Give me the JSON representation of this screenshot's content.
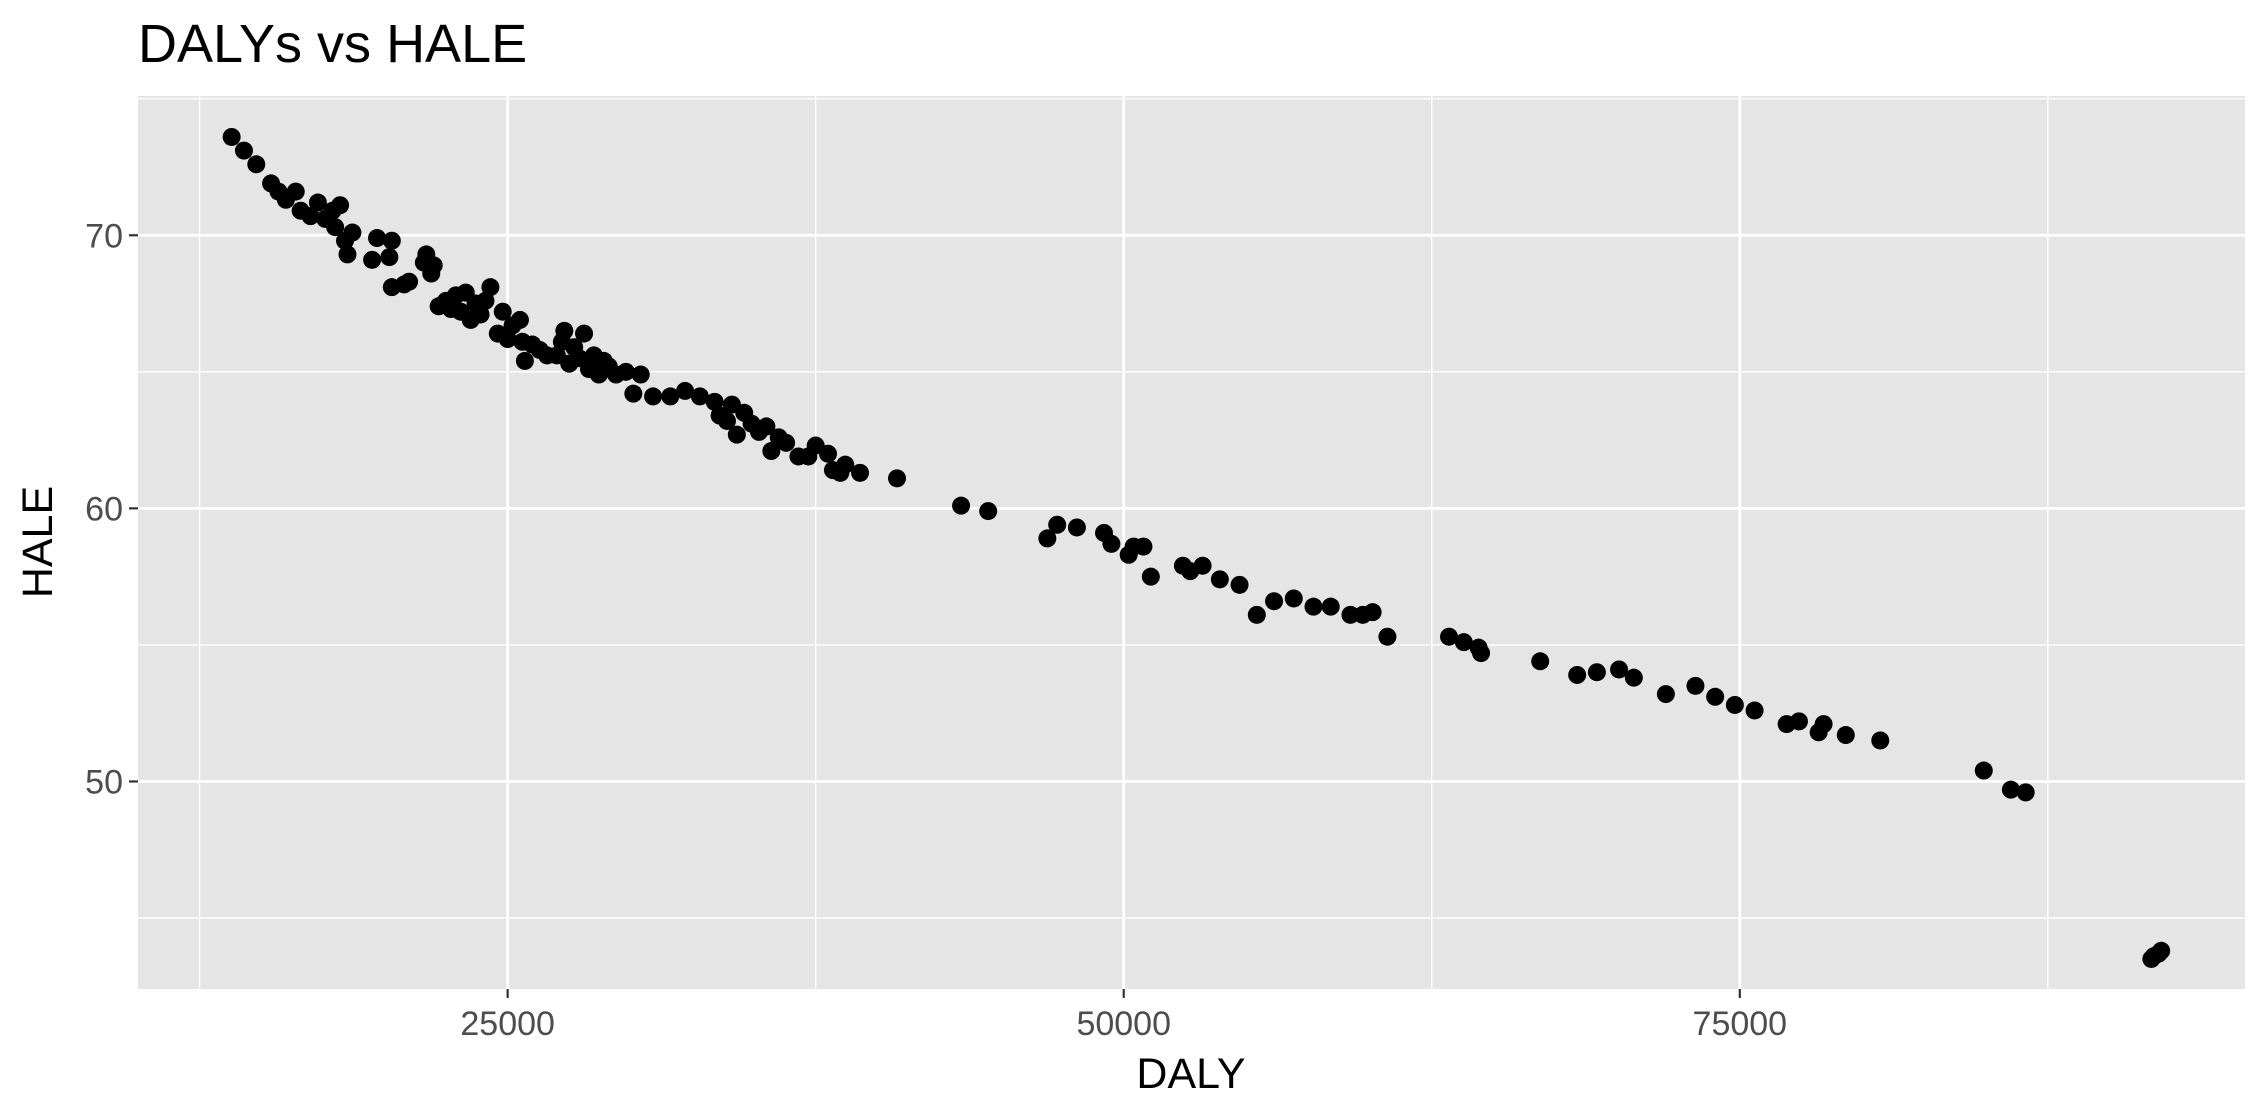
{
  "chart_data": {
    "type": "scatter",
    "title": "DALYs vs HALE",
    "xlabel": "DALY",
    "ylabel": "HALE",
    "xlim": [
      10000,
      95500
    ],
    "ylim": [
      42.4,
      75.1
    ],
    "x_ticks": [
      25000,
      50000,
      75000
    ],
    "y_ticks": [
      50,
      60,
      70
    ],
    "grid": true,
    "legend": "none",
    "colors": {
      "panel": "#e5e5e5",
      "grid": "#ffffff",
      "point": "#000000"
    },
    "points": [
      [
        13800,
        73.6
      ],
      [
        14300,
        73.1
      ],
      [
        14800,
        72.6
      ],
      [
        15400,
        71.9
      ],
      [
        15700,
        71.6
      ],
      [
        16000,
        71.3
      ],
      [
        16400,
        71.6
      ],
      [
        16600,
        70.9
      ],
      [
        17000,
        70.7
      ],
      [
        17300,
        71.2
      ],
      [
        17600,
        70.6
      ],
      [
        17900,
        70.9
      ],
      [
        18000,
        70.3
      ],
      [
        18200,
        71.1
      ],
      [
        18400,
        69.8
      ],
      [
        18700,
        70.1
      ],
      [
        18500,
        69.3
      ],
      [
        19700,
        69.9
      ],
      [
        19500,
        69.1
      ],
      [
        20300,
        69.8
      ],
      [
        20200,
        69.2
      ],
      [
        20300,
        68.1
      ],
      [
        20800,
        68.2
      ],
      [
        21000,
        68.3
      ],
      [
        21600,
        69.0
      ],
      [
        21700,
        69.3
      ],
      [
        21900,
        68.6
      ],
      [
        22000,
        68.9
      ],
      [
        22200,
        67.4
      ],
      [
        22500,
        67.6
      ],
      [
        22700,
        67.3
      ],
      [
        22900,
        67.8
      ],
      [
        23100,
        67.2
      ],
      [
        23300,
        67.9
      ],
      [
        23500,
        66.9
      ],
      [
        23700,
        67.5
      ],
      [
        23900,
        67.1
      ],
      [
        24100,
        67.6
      ],
      [
        24300,
        68.1
      ],
      [
        24600,
        66.4
      ],
      [
        24800,
        67.2
      ],
      [
        25000,
        66.2
      ],
      [
        25200,
        66.7
      ],
      [
        25500,
        66.9
      ],
      [
        25600,
        66.1
      ],
      [
        25700,
        65.4
      ],
      [
        26000,
        66.0
      ],
      [
        26300,
        65.8
      ],
      [
        26600,
        65.6
      ],
      [
        27000,
        65.6
      ],
      [
        27200,
        66.1
      ],
      [
        27300,
        66.5
      ],
      [
        27500,
        65.3
      ],
      [
        27700,
        65.9
      ],
      [
        27900,
        65.5
      ],
      [
        28100,
        66.4
      ],
      [
        28300,
        65.1
      ],
      [
        28500,
        65.6
      ],
      [
        28700,
        64.9
      ],
      [
        28900,
        65.4
      ],
      [
        29100,
        65.2
      ],
      [
        29400,
        64.9
      ],
      [
        29800,
        65.0
      ],
      [
        30100,
        64.2
      ],
      [
        30400,
        64.9
      ],
      [
        30900,
        64.1
      ],
      [
        31600,
        64.1
      ],
      [
        32200,
        64.3
      ],
      [
        32800,
        64.1
      ],
      [
        33400,
        63.9
      ],
      [
        33600,
        63.4
      ],
      [
        33900,
        63.2
      ],
      [
        34100,
        63.8
      ],
      [
        34300,
        62.7
      ],
      [
        34600,
        63.5
      ],
      [
        34900,
        63.1
      ],
      [
        35200,
        62.8
      ],
      [
        35500,
        63.0
      ],
      [
        35700,
        62.1
      ],
      [
        36000,
        62.6
      ],
      [
        36300,
        62.4
      ],
      [
        36800,
        61.9
      ],
      [
        37200,
        61.9
      ],
      [
        37500,
        62.3
      ],
      [
        38000,
        62.0
      ],
      [
        38200,
        61.4
      ],
      [
        38500,
        61.3
      ],
      [
        38700,
        61.6
      ],
      [
        39300,
        61.3
      ],
      [
        40800,
        61.1
      ],
      [
        43400,
        60.1
      ],
      [
        44500,
        59.9
      ],
      [
        46900,
        58.9
      ],
      [
        47300,
        59.4
      ],
      [
        48100,
        59.3
      ],
      [
        49200,
        59.1
      ],
      [
        49500,
        58.7
      ],
      [
        50200,
        58.3
      ],
      [
        50400,
        58.6
      ],
      [
        50800,
        58.6
      ],
      [
        51100,
        57.5
      ],
      [
        52400,
        57.9
      ],
      [
        52700,
        57.7
      ],
      [
        53200,
        57.9
      ],
      [
        53900,
        57.4
      ],
      [
        54700,
        57.2
      ],
      [
        55400,
        56.1
      ],
      [
        56100,
        56.6
      ],
      [
        56900,
        56.7
      ],
      [
        57700,
        56.4
      ],
      [
        58400,
        56.4
      ],
      [
        59200,
        56.1
      ],
      [
        59700,
        56.1
      ],
      [
        60100,
        56.2
      ],
      [
        60700,
        55.3
      ],
      [
        63200,
        55.3
      ],
      [
        63800,
        55.1
      ],
      [
        64400,
        54.9
      ],
      [
        64500,
        54.7
      ],
      [
        66900,
        54.4
      ],
      [
        68400,
        53.9
      ],
      [
        69200,
        54.0
      ],
      [
        70100,
        54.1
      ],
      [
        70700,
        53.8
      ],
      [
        72000,
        53.2
      ],
      [
        73200,
        53.5
      ],
      [
        74000,
        53.1
      ],
      [
        74800,
        52.8
      ],
      [
        75600,
        52.6
      ],
      [
        76900,
        52.1
      ],
      [
        77400,
        52.2
      ],
      [
        78200,
        51.8
      ],
      [
        78400,
        52.1
      ],
      [
        79300,
        51.7
      ],
      [
        80700,
        51.5
      ],
      [
        84900,
        50.4
      ],
      [
        86000,
        49.7
      ],
      [
        86600,
        49.6
      ],
      [
        91800,
        43.6
      ],
      [
        92100,
        43.8
      ],
      [
        92000,
        43.7
      ],
      [
        91700,
        43.5
      ]
    ]
  }
}
